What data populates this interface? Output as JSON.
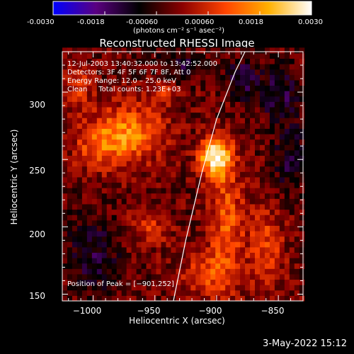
{
  "colorbar": {
    "min": -0.003,
    "max": 0.003,
    "ticks": [
      "-0.0030",
      "-0.0018",
      "-0.00060",
      "0.00060",
      "0.0018",
      "0.0030"
    ],
    "unit": "(photons cm⁻² s⁻¹ asec⁻²)",
    "stops": [
      "#0000ff",
      "#5a0080",
      "#000000",
      "#8b0000",
      "#ff4400",
      "#ffb000",
      "#ffffff"
    ]
  },
  "chart_data": {
    "type": "heatmap",
    "title": "Reconstructed RHESSI Image",
    "xlabel": "Heliocentric X (arcsec)",
    "ylabel": "Heliocentric Y (arcsec)",
    "xlim": [
      -1025,
      -830
    ],
    "ylim": [
      145,
      330
    ],
    "xticks": [
      -1000,
      -950,
      -900,
      -850
    ],
    "xtick_labels": [
      "−1000",
      "−950",
      "−900",
      "−850"
    ],
    "yticks": [
      150,
      200,
      250,
      300
    ],
    "ytick_labels": [
      "150",
      "200",
      "250",
      "300"
    ],
    "annotations": [
      "12-Jul-2003 13:40:32.000 to 13:42:52.000",
      "Detectors: 3F 4F 5F 6F 7F 8F, Att 0",
      "Energy Range: 12.0 – 25.0 keV",
      "Clean     Total counts: 1.23E+03"
    ],
    "peak_label": "Position of Peak = [−901,252]",
    "peak": {
      "x": -901,
      "y": 252
    },
    "limb_curve": [
      [
        -935,
        145
      ],
      [
        -925,
        190
      ],
      [
        -912,
        240
      ],
      [
        -900,
        280
      ],
      [
        -885,
        315
      ],
      [
        -877,
        330
      ]
    ],
    "sources": [
      {
        "x": -901,
        "y": 252,
        "sx": 9,
        "sy": 10,
        "amp": 0.0031
      },
      {
        "x": -967,
        "y": 270,
        "sx": 18,
        "sy": 15,
        "amp": 0.0017
      },
      {
        "x": -995,
        "y": 262,
        "sx": 15,
        "sy": 14,
        "amp": 0.0013
      },
      {
        "x": -892,
        "y": 205,
        "sx": 10,
        "sy": 30,
        "amp": 0.0014
      },
      {
        "x": -908,
        "y": 165,
        "sx": 14,
        "sy": 12,
        "amp": 0.0012
      },
      {
        "x": -860,
        "y": 185,
        "sx": 10,
        "sy": 24,
        "amp": 0.0011
      },
      {
        "x": -1012,
        "y": 305,
        "sx": 8,
        "sy": 10,
        "amp": 0.001
      },
      {
        "x": -955,
        "y": 200,
        "sx": 12,
        "sy": 10,
        "amp": 0.0009
      },
      {
        "x": -945,
        "y": 300,
        "sx": 8,
        "sy": 8,
        "amp": 0.0008
      },
      {
        "x": -880,
        "y": 310,
        "sx": 8,
        "sy": 10,
        "amp": -0.0012
      },
      {
        "x": -850,
        "y": 300,
        "sx": 12,
        "sy": 14,
        "amp": -0.0011
      },
      {
        "x": -1000,
        "y": 180,
        "sx": 15,
        "sy": 20,
        "amp": -0.001
      },
      {
        "x": -840,
        "y": 250,
        "sx": 10,
        "sy": 20,
        "amp": -0.0009
      },
      {
        "x": -930,
        "y": 320,
        "sx": 14,
        "sy": 8,
        "amp": -0.0009
      }
    ]
  },
  "footer": {
    "date": "3-May-2022 15:12"
  }
}
